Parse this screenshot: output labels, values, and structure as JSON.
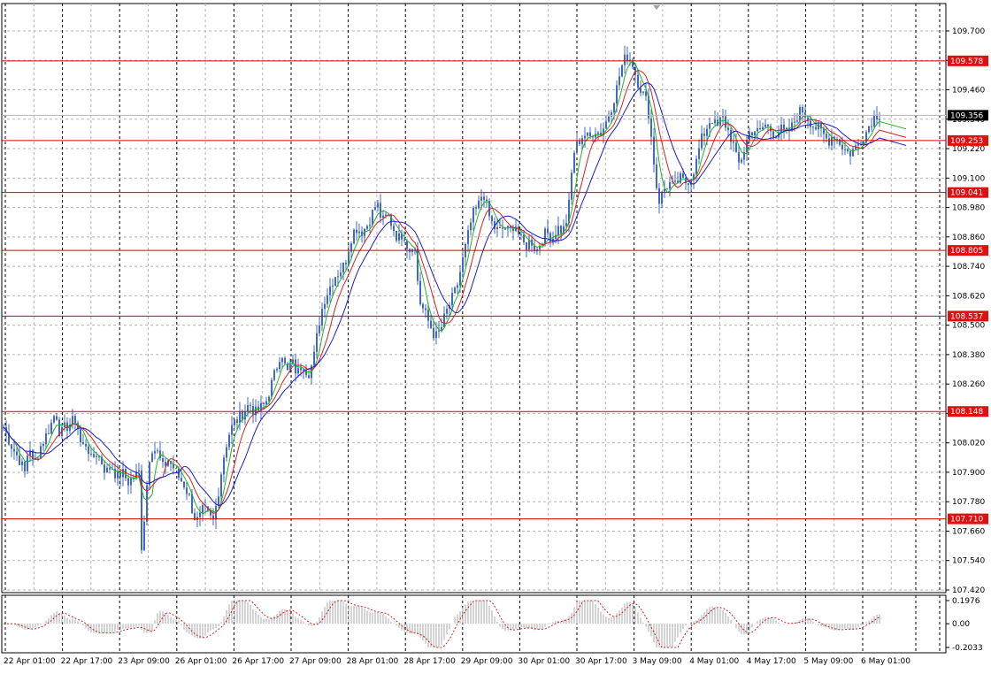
{
  "colors": {
    "background": "#ffffff",
    "grid": "#b4b4b4",
    "candle": "#4169c4",
    "ma_fast": "#22b422",
    "ma_mid": "#d42020",
    "ma_slow": "#1c1cc8",
    "level_line": "#d40000",
    "level_label_bg": "#e01010",
    "current_label_bg": "#000000",
    "osc_hist": "#a8a8a8",
    "osc_line": "#d42020"
  },
  "chart_data": [
    {
      "type": "candlestick",
      "title": "",
      "price_axis": {
        "range": [
          107.42,
          109.7
        ],
        "ticks": [
          "109.700",
          "109.580",
          "109.460",
          "109.340",
          "109.220",
          "109.100",
          "108.980",
          "108.860",
          "108.740",
          "108.620",
          "108.500",
          "108.380",
          "108.260",
          "108.140",
          "108.020",
          "107.900",
          "107.780",
          "107.660",
          "107.540",
          "107.420"
        ]
      },
      "time_axis": {
        "labels": [
          "22 Apr 01:00",
          "22 Apr 17:00",
          "23 Apr 09:00",
          "26 Apr 01:00",
          "26 Apr 17:00",
          "27 Apr 09:00",
          "28 Apr 01:00",
          "28 Apr 17:00",
          "29 Apr 09:00",
          "30 Apr 01:00",
          "30 Apr 17:00",
          "3 May 09:00",
          "4 May 01:00",
          "4 May 17:00",
          "5 May 09:00",
          "6 May 01:00"
        ]
      },
      "current_price": "109.356",
      "horizontal_levels": [
        "109.578",
        "109.253",
        "109.041",
        "108.805",
        "108.537",
        "108.148",
        "107.710"
      ],
      "close_path": [
        [
          0,
          108.12
        ],
        [
          8,
          108.05
        ],
        [
          14,
          108.0
        ],
        [
          22,
          107.95
        ],
        [
          28,
          107.9
        ],
        [
          33,
          108.02
        ],
        [
          38,
          107.92
        ],
        [
          45,
          108.0
        ],
        [
          52,
          108.05
        ],
        [
          58,
          108.1
        ],
        [
          63,
          108.15
        ],
        [
          68,
          108.05
        ],
        [
          73,
          108.08
        ],
        [
          80,
          108.1
        ],
        [
          86,
          108.12
        ],
        [
          92,
          108.0
        ],
        [
          98,
          108.02
        ],
        [
          103,
          107.95
        ],
        [
          109,
          107.98
        ],
        [
          115,
          107.94
        ],
        [
          120,
          107.9
        ],
        [
          126,
          107.93
        ],
        [
          132,
          107.88
        ],
        [
          138,
          107.9
        ],
        [
          145,
          107.86
        ],
        [
          151,
          107.88
        ],
        [
          157,
          107.9
        ],
        [
          160,
          107.6
        ],
        [
          164,
          107.75
        ],
        [
          168,
          107.95
        ],
        [
          172,
          108.0
        ],
        [
          178,
          107.98
        ],
        [
          184,
          107.92
        ],
        [
          190,
          107.95
        ],
        [
          196,
          107.92
        ],
        [
          202,
          107.88
        ],
        [
          208,
          107.85
        ],
        [
          214,
          107.8
        ],
        [
          219,
          107.72
        ],
        [
          224,
          107.7
        ],
        [
          230,
          107.75
        ],
        [
          236,
          107.72
        ],
        [
          241,
          107.7
        ],
        [
          246,
          107.8
        ],
        [
          252,
          107.95
        ],
        [
          258,
          108.05
        ],
        [
          264,
          108.1
        ],
        [
          270,
          108.12
        ],
        [
          276,
          108.15
        ],
        [
          282,
          108.18
        ],
        [
          288,
          108.14
        ],
        [
          294,
          108.16
        ],
        [
          300,
          108.18
        ],
        [
          306,
          108.25
        ],
        [
          312,
          108.32
        ],
        [
          318,
          108.4
        ],
        [
          324,
          108.3
        ],
        [
          330,
          108.35
        ],
        [
          336,
          108.3
        ],
        [
          342,
          108.35
        ],
        [
          348,
          108.3
        ],
        [
          354,
          108.35
        ],
        [
          360,
          108.5
        ],
        [
          366,
          108.6
        ],
        [
          372,
          108.65
        ],
        [
          378,
          108.7
        ],
        [
          384,
          108.72
        ],
        [
          390,
          108.75
        ],
        [
          396,
          108.85
        ],
        [
          402,
          108.9
        ],
        [
          408,
          108.88
        ],
        [
          414,
          108.9
        ],
        [
          420,
          108.95
        ],
        [
          426,
          109.0
        ],
        [
          432,
          108.92
        ],
        [
          438,
          108.95
        ],
        [
          444,
          108.9
        ],
        [
          450,
          108.85
        ],
        [
          456,
          108.88
        ],
        [
          462,
          108.8
        ],
        [
          468,
          108.85
        ],
        [
          474,
          108.6
        ],
        [
          480,
          108.55
        ],
        [
          486,
          108.5
        ],
        [
          492,
          108.45
        ],
        [
          498,
          108.48
        ],
        [
          504,
          108.55
        ],
        [
          510,
          108.6
        ],
        [
          516,
          108.65
        ],
        [
          522,
          108.75
        ],
        [
          528,
          108.85
        ],
        [
          534,
          108.95
        ],
        [
          540,
          108.98
        ],
        [
          546,
          109.05
        ],
        [
          552,
          108.95
        ],
        [
          558,
          108.9
        ],
        [
          564,
          108.88
        ],
        [
          570,
          108.9
        ],
        [
          576,
          108.88
        ],
        [
          582,
          108.92
        ],
        [
          588,
          108.85
        ],
        [
          594,
          108.82
        ],
        [
          600,
          108.85
        ],
        [
          606,
          108.8
        ],
        [
          612,
          108.85
        ],
        [
          618,
          108.88
        ],
        [
          624,
          108.85
        ],
        [
          630,
          108.9
        ],
        [
          636,
          108.88
        ],
        [
          642,
          108.95
        ],
        [
          648,
          109.2
        ],
        [
          654,
          109.25
        ],
        [
          660,
          109.28
        ],
        [
          666,
          109.26
        ],
        [
          672,
          109.3
        ],
        [
          678,
          109.28
        ],
        [
          684,
          109.32
        ],
        [
          690,
          109.38
        ],
        [
          696,
          109.45
        ],
        [
          702,
          109.55
        ],
        [
          708,
          109.6
        ],
        [
          714,
          109.58
        ],
        [
          720,
          109.5
        ],
        [
          726,
          109.45
        ],
        [
          732,
          109.4
        ],
        [
          738,
          109.2
        ],
        [
          744,
          109.0
        ],
        [
          750,
          109.05
        ],
        [
          756,
          109.08
        ],
        [
          762,
          109.06
        ],
        [
          768,
          109.1
        ],
        [
          774,
          109.08
        ],
        [
          780,
          109.1
        ],
        [
          786,
          109.15
        ],
        [
          792,
          109.25
        ],
        [
          798,
          109.3
        ],
        [
          804,
          109.35
        ],
        [
          810,
          109.3
        ],
        [
          816,
          109.35
        ],
        [
          822,
          109.3
        ],
        [
          828,
          109.25
        ],
        [
          834,
          109.15
        ],
        [
          840,
          109.2
        ],
        [
          846,
          109.28
        ],
        [
          852,
          109.3
        ],
        [
          858,
          109.28
        ],
        [
          864,
          109.32
        ],
        [
          870,
          109.3
        ],
        [
          876,
          109.28
        ],
        [
          882,
          109.3
        ],
        [
          888,
          109.28
        ],
        [
          894,
          109.3
        ],
        [
          900,
          109.35
        ],
        [
          906,
          109.38
        ],
        [
          912,
          109.35
        ],
        [
          918,
          109.32
        ],
        [
          924,
          109.3
        ],
        [
          930,
          109.28
        ],
        [
          936,
          109.25
        ],
        [
          942,
          109.28
        ],
        [
          948,
          109.25
        ],
        [
          954,
          109.22
        ],
        [
          960,
          109.2
        ],
        [
          966,
          109.22
        ],
        [
          972,
          109.25
        ],
        [
          978,
          109.28
        ],
        [
          984,
          109.33
        ],
        [
          990,
          109.36
        ],
        [
          995,
          109.356
        ]
      ]
    },
    {
      "type": "histogram-oscillator",
      "ticks": [
        "0.1976",
        "0.00",
        "-0.2033"
      ],
      "range": [
        -0.2033,
        0.1976
      ]
    }
  ]
}
